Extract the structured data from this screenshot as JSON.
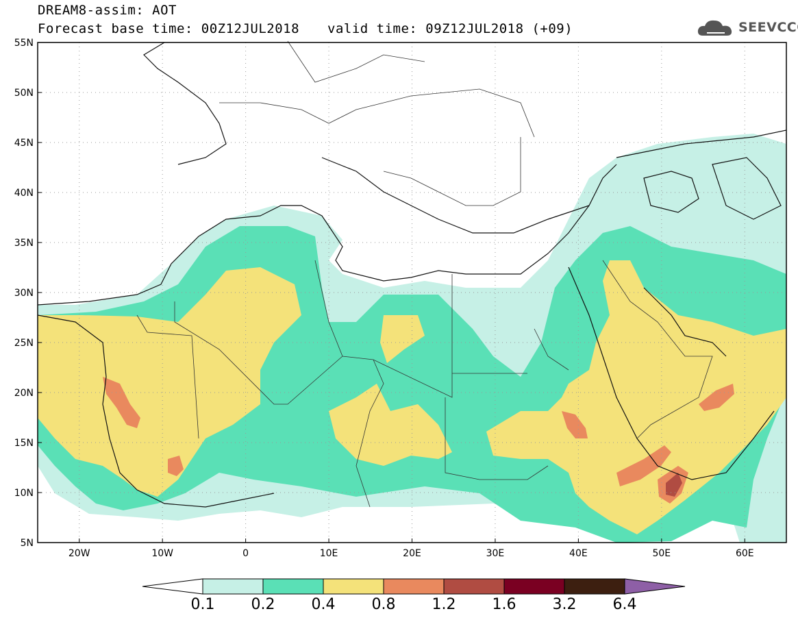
{
  "header": {
    "line1": "DREAM8-assim: AOT",
    "line2": "Forecast base time: 00Z12JUL2018",
    "valid": "valid time: 09Z12JUL2018 (+09)"
  },
  "logo": {
    "text": "SEEVCCC",
    "icon": "cloud-icon"
  },
  "map": {
    "lon_range": [
      -25,
      65
    ],
    "lat_range": [
      5,
      55
    ],
    "y_ticks": [
      "55N",
      "50N",
      "45N",
      "40N",
      "35N",
      "30N",
      "25N",
      "20N",
      "15N",
      "10N",
      "5N"
    ],
    "x_ticks": [
      "20W",
      "10W",
      "0",
      "10E",
      "20E",
      "30E",
      "40E",
      "50E",
      "60E"
    ],
    "grid": "dotted"
  },
  "colorbar": {
    "labels": [
      "0.1",
      "0.2",
      "0.4",
      "0.8",
      "1.2",
      "1.6",
      "3.2",
      "6.4"
    ],
    "colors": [
      "#ffffff",
      "#c6f0e6",
      "#5ae0b6",
      "#f4e27a",
      "#e9895e",
      "#b04c42",
      "#7a0022",
      "#3d1f10",
      "#8e5fa6"
    ]
  }
}
